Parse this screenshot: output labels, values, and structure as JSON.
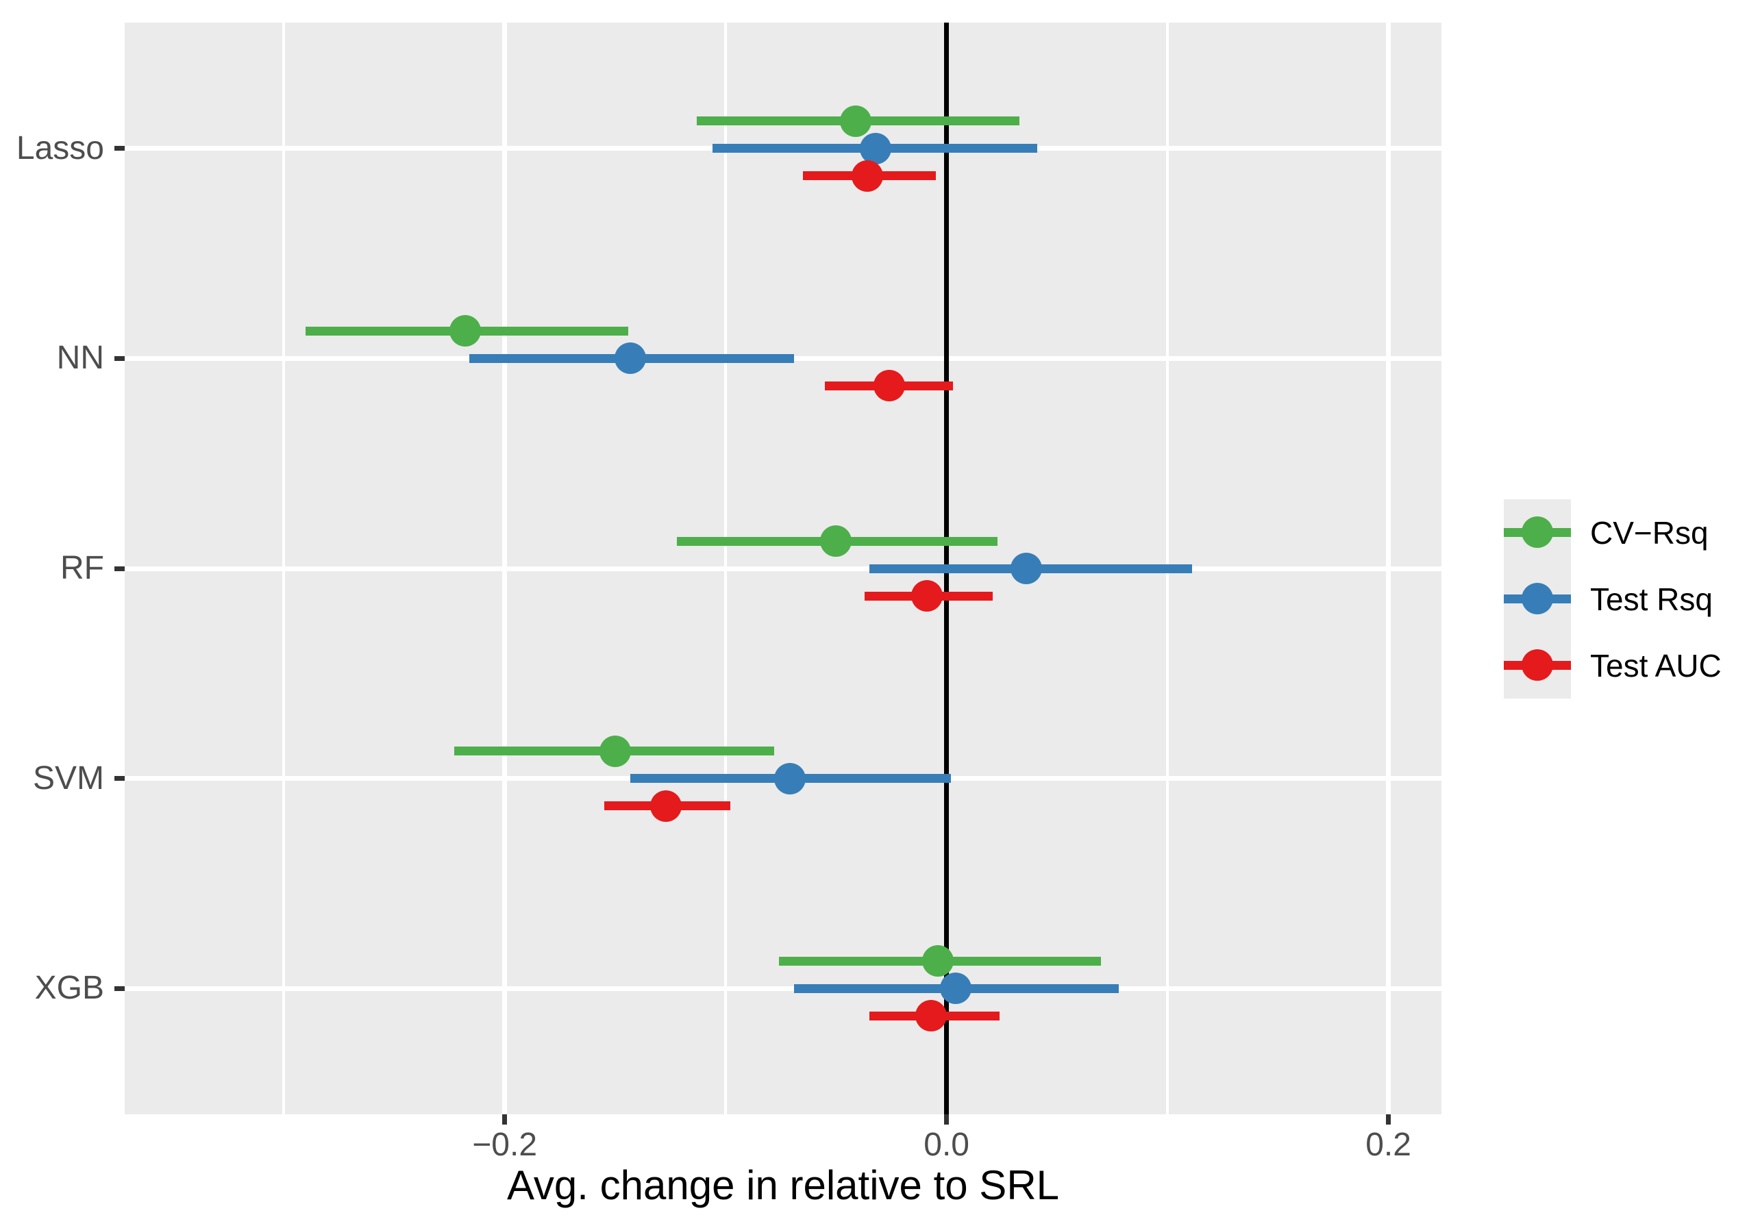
{
  "chart_data": {
    "type": "scatter",
    "variant": "forest-pointrange",
    "title": "",
    "xlabel": "Avg. change in relative to SRL",
    "ylabel": "",
    "categories": [
      "Lasso",
      "NN",
      "RF",
      "SVM",
      "XGB"
    ],
    "xlim": [
      -0.372,
      0.224
    ],
    "x_major_ticks": [
      -0.2,
      0.0,
      0.2
    ],
    "x_tick_labels": [
      "−0.2",
      "0.0",
      "0.2"
    ],
    "x_minor_gridlines": [
      -0.3,
      -0.1,
      0.1
    ],
    "reference_line_x": 0.0,
    "grid": true,
    "legend_position": "right",
    "panel_background_color": "#EBEBEB",
    "gridline_color": "#FFFFFF",
    "reference_line_color": "#000000",
    "axis_text_color": "#4D4D4D",
    "series": [
      {
        "name": "CV−Rsq",
        "color": "#4DAF4A",
        "values": [
          -0.041,
          -0.218,
          -0.05,
          -0.15,
          -0.004
        ],
        "ci_low": [
          -0.113,
          -0.29,
          -0.122,
          -0.223,
          -0.076
        ],
        "ci_high": [
          0.033,
          -0.144,
          0.023,
          -0.078,
          0.07
        ]
      },
      {
        "name": "Test Rsq",
        "color": "#377EB8",
        "values": [
          -0.032,
          -0.143,
          0.036,
          -0.071,
          0.004
        ],
        "ci_low": [
          -0.106,
          -0.216,
          -0.035,
          -0.143,
          -0.069
        ],
        "ci_high": [
          0.041,
          -0.069,
          0.111,
          0.002,
          0.078
        ]
      },
      {
        "name": "Test AUC",
        "color": "#E41A1C",
        "values": [
          -0.036,
          -0.026,
          -0.009,
          -0.127,
          -0.007
        ],
        "ci_low": [
          -0.065,
          -0.055,
          -0.037,
          -0.155,
          -0.035
        ],
        "ci_high": [
          -0.005,
          0.003,
          0.021,
          -0.098,
          0.024
        ]
      }
    ]
  }
}
